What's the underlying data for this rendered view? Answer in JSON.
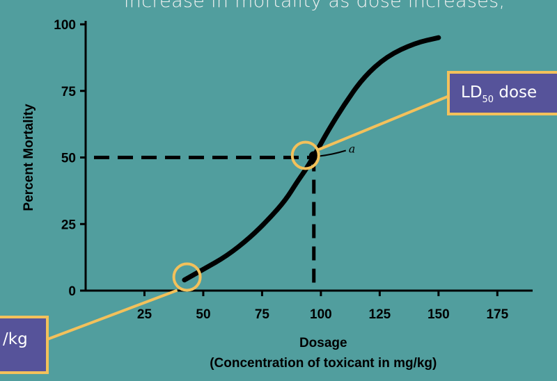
{
  "header": {
    "text": "increase in mortality as dose increases,"
  },
  "callouts": {
    "ld50_main": "LD",
    "ld50_sub": "50",
    "ld50_tail": " dose",
    "lower_text": "/kg"
  },
  "colors": {
    "background": "#519e9e",
    "callout_fill": "#56539a",
    "callout_border": "#f3c15b",
    "curve": "#000000"
  },
  "chart_data": {
    "type": "line",
    "title": "",
    "ylabel": "Percent Mortality",
    "xlabel": "Dosage",
    "xlabel2": "(Concentration of toxicant in mg/kg)",
    "xlim": [
      0,
      190
    ],
    "ylim": [
      0,
      100
    ],
    "x_ticks": [
      "25",
      "50",
      "75",
      "100",
      "125",
      "150",
      "175"
    ],
    "y_ticks": [
      "0",
      "25",
      "50",
      "75",
      "100"
    ],
    "x_tick_values": [
      25,
      50,
      75,
      100,
      125,
      150,
      175
    ],
    "y_tick_values": [
      0,
      25,
      50,
      75,
      100
    ],
    "series": [
      {
        "x": [
          42,
          50,
          60,
          70,
          78,
          85,
          90,
          94,
          98,
          103,
          110,
          118,
          128,
          140,
          150
        ],
        "y": [
          4,
          8,
          13,
          20,
          27,
          34,
          41,
          46,
          52,
          60,
          70,
          80,
          88,
          93,
          95
        ]
      }
    ],
    "reference": {
      "x": 97,
      "y": 50
    },
    "point_label": "a"
  }
}
